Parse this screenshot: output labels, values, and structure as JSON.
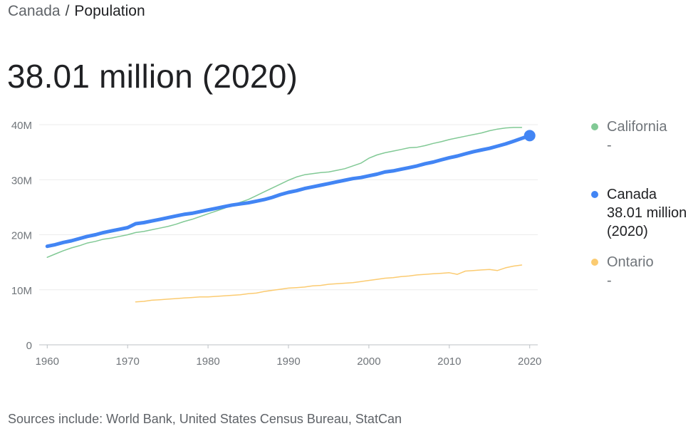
{
  "breadcrumb": {
    "parent": "Canada",
    "separator": "/",
    "current": "Population"
  },
  "headline": "38.01 million (2020)",
  "source": "Sources include: World Bank, United States Census Bureau, StatCan",
  "legend": [
    {
      "name": "California",
      "value": "-",
      "color": "#81c995",
      "active": false
    },
    {
      "name": "Canada",
      "value": "38.01 million (2020)",
      "color": "#4285f4",
      "active": true
    },
    {
      "name": "Ontario",
      "value": "-",
      "color": "#fbcb71",
      "active": false
    }
  ],
  "chart_data": {
    "type": "line",
    "title": "",
    "xlabel": "",
    "ylabel": "",
    "xlim": [
      1959,
      2021
    ],
    "ylim": [
      0,
      40000000
    ],
    "x_ticks": [
      1960,
      1970,
      1980,
      1990,
      2000,
      2010,
      2020
    ],
    "x_tick_labels": [
      "1960",
      "1970",
      "1980",
      "1990",
      "2000",
      "2010",
      "2020"
    ],
    "y_ticks": [
      0,
      10000000,
      20000000,
      30000000,
      40000000
    ],
    "y_tick_labels": [
      "0",
      "10M",
      "20M",
      "30M",
      "40M"
    ],
    "grid": true,
    "legend_position": "right",
    "series": [
      {
        "name": "California",
        "color": "#81c995",
        "x": [
          1960,
          1961,
          1962,
          1963,
          1964,
          1965,
          1966,
          1967,
          1968,
          1969,
          1970,
          1971,
          1972,
          1973,
          1974,
          1975,
          1976,
          1977,
          1978,
          1979,
          1980,
          1981,
          1982,
          1983,
          1984,
          1985,
          1986,
          1987,
          1988,
          1989,
          1990,
          1991,
          1992,
          1993,
          1994,
          1995,
          1996,
          1997,
          1998,
          1999,
          2000,
          2001,
          2002,
          2003,
          2004,
          2005,
          2006,
          2007,
          2008,
          2009,
          2010,
          2011,
          2012,
          2013,
          2014,
          2015,
          2016,
          2017,
          2018,
          2019
        ],
        "values": [
          15900000,
          16500000,
          17100000,
          17600000,
          18000000,
          18500000,
          18800000,
          19200000,
          19400000,
          19700000,
          20000000,
          20400000,
          20600000,
          20900000,
          21200000,
          21500000,
          21900000,
          22400000,
          22800000,
          23300000,
          23800000,
          24300000,
          24800000,
          25400000,
          25900000,
          26400000,
          27100000,
          27800000,
          28500000,
          29200000,
          29900000,
          30500000,
          30900000,
          31100000,
          31300000,
          31400000,
          31700000,
          32000000,
          32500000,
          33000000,
          33900000,
          34500000,
          34900000,
          35200000,
          35500000,
          35800000,
          35900000,
          36200000,
          36600000,
          36900000,
          37300000,
          37600000,
          37900000,
          38200000,
          38500000,
          38900000,
          39200000,
          39400000,
          39500000,
          39500000
        ]
      },
      {
        "name": "Canada",
        "color": "#4285f4",
        "x": [
          1960,
          1961,
          1962,
          1963,
          1964,
          1965,
          1966,
          1967,
          1968,
          1969,
          1970,
          1971,
          1972,
          1973,
          1974,
          1975,
          1976,
          1977,
          1978,
          1979,
          1980,
          1981,
          1982,
          1983,
          1984,
          1985,
          1986,
          1987,
          1988,
          1989,
          1990,
          1991,
          1992,
          1993,
          1994,
          1995,
          1996,
          1997,
          1998,
          1999,
          2000,
          2001,
          2002,
          2003,
          2004,
          2005,
          2006,
          2007,
          2008,
          2009,
          2010,
          2011,
          2012,
          2013,
          2014,
          2015,
          2016,
          2017,
          2018,
          2019,
          2020
        ],
        "values": [
          17900000,
          18200000,
          18600000,
          18900000,
          19300000,
          19700000,
          20000000,
          20400000,
          20700000,
          21000000,
          21300000,
          22000000,
          22200000,
          22500000,
          22800000,
          23100000,
          23400000,
          23700000,
          23900000,
          24200000,
          24500000,
          24800000,
          25100000,
          25400000,
          25600000,
          25800000,
          26100000,
          26400000,
          26800000,
          27300000,
          27700000,
          28000000,
          28400000,
          28700000,
          29000000,
          29300000,
          29600000,
          29900000,
          30200000,
          30400000,
          30700000,
          31000000,
          31400000,
          31600000,
          31900000,
          32200000,
          32500000,
          32900000,
          33200000,
          33600000,
          34000000,
          34300000,
          34700000,
          35100000,
          35400000,
          35700000,
          36100000,
          36500000,
          37000000,
          37500000,
          38010000
        ]
      },
      {
        "name": "Ontario",
        "color": "#fbcb71",
        "x": [
          1971,
          1972,
          1973,
          1974,
          1975,
          1976,
          1977,
          1978,
          1979,
          1980,
          1981,
          1982,
          1983,
          1984,
          1985,
          1986,
          1987,
          1988,
          1989,
          1990,
          1991,
          1992,
          1993,
          1994,
          1995,
          1996,
          1997,
          1998,
          1999,
          2000,
          2001,
          2002,
          2003,
          2004,
          2005,
          2006,
          2007,
          2008,
          2009,
          2010,
          2011,
          2012,
          2013,
          2014,
          2015,
          2016,
          2017,
          2018,
          2019
        ],
        "values": [
          7800000,
          7900000,
          8100000,
          8200000,
          8300000,
          8400000,
          8500000,
          8600000,
          8700000,
          8700000,
          8800000,
          8900000,
          9000000,
          9100000,
          9300000,
          9400000,
          9700000,
          9900000,
          10100000,
          10300000,
          10400000,
          10500000,
          10700000,
          10800000,
          11000000,
          11100000,
          11200000,
          11300000,
          11500000,
          11700000,
          11900000,
          12100000,
          12200000,
          12400000,
          12500000,
          12700000,
          12800000,
          12900000,
          13000000,
          13100000,
          12800000,
          13400000,
          13500000,
          13600000,
          13700000,
          13500000,
          14000000,
          14300000,
          14500000
        ]
      }
    ],
    "highlight_point": {
      "series": "Canada",
      "x": 2020,
      "y": 38010000
    }
  }
}
